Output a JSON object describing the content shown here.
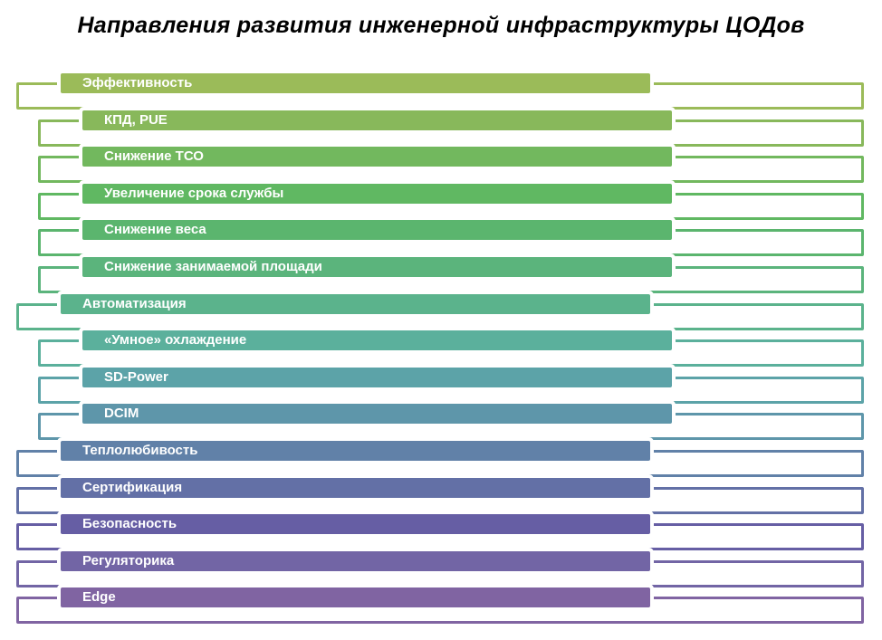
{
  "title": "Направления развития  инженерной инфраструктуры ЦОДов",
  "items": [
    {
      "label": "Эффективность",
      "level": 0,
      "color": "#9BBB59"
    },
    {
      "label": "КПД, PUE",
      "level": 1,
      "color": "#88B85B"
    },
    {
      "label": "Снижение ТСО",
      "level": 1,
      "color": "#72B85E"
    },
    {
      "label": "Увеличение срока службы",
      "level": 1,
      "color": "#60B862"
    },
    {
      "label": "Снижение веса",
      "level": 1,
      "color": "#5BB56E"
    },
    {
      "label": "Снижение занимаемой площади",
      "level": 1,
      "color": "#5BB47C"
    },
    {
      "label": "Автоматизация",
      "level": 0,
      "color": "#5BB38C"
    },
    {
      "label": "«Умное» охлаждение",
      "level": 1,
      "color": "#5BB09C"
    },
    {
      "label": "SD-Power",
      "level": 1,
      "color": "#5CA3A8"
    },
    {
      "label": "DCIM",
      "level": 1,
      "color": "#5E96AA"
    },
    {
      "label": "Теплолюбивость",
      "level": 0,
      "color": "#6181A8"
    },
    {
      "label": "Сертификация",
      "level": 0,
      "color": "#6370A6"
    },
    {
      "label": "Безопасность",
      "level": 0,
      "color": "#665EA4"
    },
    {
      "label": "Регуляторика",
      "level": 0,
      "color": "#7265A5"
    },
    {
      "label": "Edge",
      "level": 0,
      "color": "#8064A2"
    }
  ]
}
